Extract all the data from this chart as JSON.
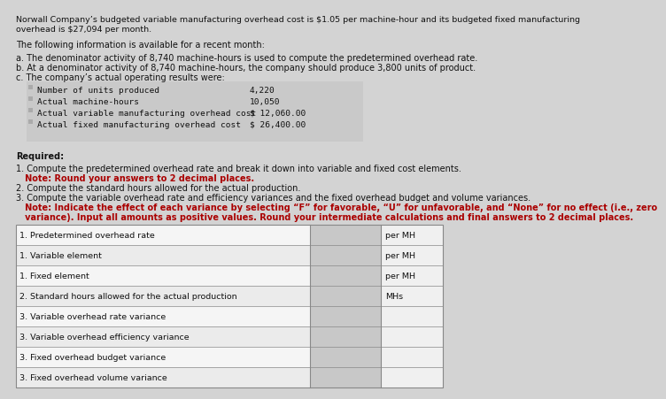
{
  "title_line1": "Norwall Company’s budgeted variable manufacturing overhead cost is $1.05 per machine-hour and its budgeted fixed manufacturing",
  "title_line2": "overhead is $27,094 per month.",
  "intro_text": "The following information is available for a recent month:",
  "bullet_a": "a. The denominator activity of 8,740 machine-hours is used to compute the predetermined overhead rate.",
  "bullet_b": "b. At a denominator activity of 8,740 machine-hours, the company should produce 3,800 units of product.",
  "bullet_c": "c. The company’s actual operating results were:",
  "data_rows": [
    [
      "Number of units produced",
      "4,220"
    ],
    [
      "Actual machine-hours",
      "10,050"
    ],
    [
      "Actual variable manufacturing overhead cost",
      "$ 12,060.00"
    ],
    [
      "Actual fixed manufacturing overhead cost",
      "$ 26,400.00"
    ]
  ],
  "required_label": "Required:",
  "req1": "1. Compute the predetermined overhead rate and break it down into variable and fixed cost elements.",
  "req1_note": "   Note: Round your answers to 2 decimal places.",
  "req2": "2. Compute the standard hours allowed for the actual production.",
  "req3": "3. Compute the variable overhead rate and efficiency variances and the fixed overhead budget and volume variances.",
  "req3_note1": "   Note: Indicate the effect of each variance by selecting “F” for favorable, “U” for unfavorable, and “None” for no effect (i.e., zero",
  "req3_note2": "   variance). Input all amounts as positive values. Round your intermediate calculations and final answers to 2 decimal places.",
  "table_rows": [
    [
      "1. Predetermined overhead rate",
      "per MH"
    ],
    [
      "1. Variable element",
      "per MH"
    ],
    [
      "1. Fixed element",
      "per MH"
    ],
    [
      "2. Standard hours allowed for the actual production",
      "MHs"
    ],
    [
      "3. Variable overhead rate variance",
      ""
    ],
    [
      "3. Variable overhead efficiency variance",
      ""
    ],
    [
      "3. Fixed overhead budget variance",
      ""
    ],
    [
      "3. Fixed overhead volume variance",
      ""
    ]
  ],
  "bg_color": "#d3d3d3",
  "table_row_bg": "#f5f5f5",
  "table_row_alt": "#ebebeb",
  "input_cell_bg": "#c8c8c8",
  "unit_cell_bg": "#f0f0f0",
  "text_color": "#111111",
  "note_color": "#aa0000",
  "border_color": "#888888",
  "font_size_title": 6.8,
  "font_size_body": 7.0,
  "font_size_mono": 6.8,
  "font_size_table": 6.8
}
